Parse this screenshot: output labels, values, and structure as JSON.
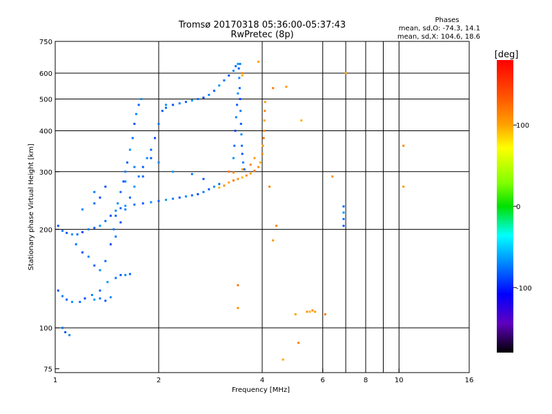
{
  "header": {
    "title_line1": "Tromsø 20170318 05:36:00-05:37:43",
    "title_line2": "RwPretec (8p)",
    "phases_label": "Phases",
    "phases_o": "mean, sd,O: -74.3, 14.1",
    "phases_x": "mean, sd,X: 104.6, 18.6"
  },
  "chart_data": {
    "type": "scatter",
    "xlabel": "Frequency [MHz]",
    "ylabel": "Stationary phase Virtual Height [km]",
    "xscale": "log",
    "yscale": "log",
    "xlim": [
      1,
      16
    ],
    "ylim": [
      73,
      750
    ],
    "x_ticks": [
      1,
      2,
      4,
      6,
      8,
      10,
      16
    ],
    "x_tick_labels": [
      "1",
      "2",
      "4",
      "6",
      "8",
      "10",
      "16"
    ],
    "x_grid": [
      2,
      4,
      6,
      7,
      8,
      9,
      10
    ],
    "y_ticks": [
      75,
      100,
      200,
      300,
      400,
      500,
      600,
      750
    ],
    "y_tick_labels": [
      "75",
      "100",
      "200",
      "300",
      "400",
      "500",
      "600",
      "750"
    ],
    "y_grid": [
      100,
      200,
      300,
      400,
      500,
      600
    ],
    "grid": true,
    "colorbar": {
      "label": "[deg]",
      "range": [
        -180,
        180
      ],
      "ticks": [
        100,
        0,
        -100
      ],
      "tick_labels": [
        "100",
        "0",
        "-100"
      ]
    },
    "series": [
      {
        "mode": "O",
        "phase_mean": -74.3,
        "points": [
          [
            1.02,
            205
          ],
          [
            1.05,
            198
          ],
          [
            1.08,
            195
          ],
          [
            1.12,
            193
          ],
          [
            1.16,
            193
          ],
          [
            1.2,
            196
          ],
          [
            1.25,
            200
          ],
          [
            1.3,
            202
          ],
          [
            1.35,
            205
          ],
          [
            1.4,
            212
          ],
          [
            1.45,
            220
          ],
          [
            1.5,
            228
          ],
          [
            1.55,
            232
          ],
          [
            1.6,
            236
          ],
          [
            1.7,
            238
          ],
          [
            1.8,
            240
          ],
          [
            1.9,
            242
          ],
          [
            2.0,
            244
          ],
          [
            2.1,
            246
          ],
          [
            2.2,
            248
          ],
          [
            2.3,
            250
          ],
          [
            2.4,
            252
          ],
          [
            2.5,
            254
          ],
          [
            2.6,
            256
          ],
          [
            2.7,
            260
          ],
          [
            2.8,
            265
          ],
          [
            2.9,
            270
          ],
          [
            3.0,
            275
          ],
          [
            1.02,
            130
          ],
          [
            1.05,
            125
          ],
          [
            1.08,
            122
          ],
          [
            1.12,
            120
          ],
          [
            1.18,
            120
          ],
          [
            1.22,
            123
          ],
          [
            1.28,
            126
          ],
          [
            1.35,
            130
          ],
          [
            1.42,
            138
          ],
          [
            1.5,
            142
          ],
          [
            1.55,
            145
          ],
          [
            1.6,
            145
          ],
          [
            1.65,
            146
          ],
          [
            1.3,
            122
          ],
          [
            1.35,
            123
          ],
          [
            1.4,
            121
          ],
          [
            1.45,
            124
          ],
          [
            1.4,
            160
          ],
          [
            1.45,
            180
          ],
          [
            1.48,
            200
          ],
          [
            1.5,
            220
          ],
          [
            1.52,
            240
          ],
          [
            1.55,
            260
          ],
          [
            1.58,
            280
          ],
          [
            1.6,
            300
          ],
          [
            1.62,
            320
          ],
          [
            1.65,
            350
          ],
          [
            1.68,
            380
          ],
          [
            1.7,
            420
          ],
          [
            1.72,
            450
          ],
          [
            1.75,
            480
          ],
          [
            1.78,
            500
          ],
          [
            1.5,
            190
          ],
          [
            1.55,
            210
          ],
          [
            1.6,
            230
          ],
          [
            1.65,
            250
          ],
          [
            1.7,
            270
          ],
          [
            1.75,
            290
          ],
          [
            1.8,
            310
          ],
          [
            1.85,
            330
          ],
          [
            1.9,
            350
          ],
          [
            1.95,
            380
          ],
          [
            2.0,
            420
          ],
          [
            2.05,
            460
          ],
          [
            2.1,
            480
          ],
          [
            2.1,
            470
          ],
          [
            2.2,
            480
          ],
          [
            2.3,
            485
          ],
          [
            2.4,
            490
          ],
          [
            2.5,
            495
          ],
          [
            2.6,
            500
          ],
          [
            2.7,
            505
          ],
          [
            2.8,
            515
          ],
          [
            2.9,
            530
          ],
          [
            3.0,
            550
          ],
          [
            3.1,
            570
          ],
          [
            3.2,
            590
          ],
          [
            3.3,
            610
          ],
          [
            3.35,
            630
          ],
          [
            3.4,
            640
          ],
          [
            3.45,
            640
          ],
          [
            3.42,
            620
          ],
          [
            3.43,
            580
          ],
          [
            3.44,
            540
          ],
          [
            3.45,
            500
          ],
          [
            3.46,
            460
          ],
          [
            3.47,
            420
          ],
          [
            3.48,
            390
          ],
          [
            3.49,
            360
          ],
          [
            3.5,
            340
          ],
          [
            3.52,
            320
          ],
          [
            3.55,
            305
          ],
          [
            3.3,
            330
          ],
          [
            3.32,
            360
          ],
          [
            3.34,
            400
          ],
          [
            3.36,
            440
          ],
          [
            3.38,
            480
          ],
          [
            3.4,
            520
          ],
          [
            1.3,
            260
          ],
          [
            1.4,
            270
          ],
          [
            1.6,
            280
          ],
          [
            1.8,
            290
          ],
          [
            2.2,
            300
          ],
          [
            2.5,
            295
          ],
          [
            2.7,
            285
          ],
          [
            1.2,
            230
          ],
          [
            1.3,
            240
          ],
          [
            1.35,
            250
          ],
          [
            1.7,
            310
          ],
          [
            1.9,
            330
          ],
          [
            2.0,
            320
          ],
          [
            1.15,
            180
          ],
          [
            1.2,
            170
          ],
          [
            1.25,
            165
          ],
          [
            1.3,
            155
          ],
          [
            1.35,
            150
          ],
          [
            1.05,
            100
          ],
          [
            1.07,
            97
          ],
          [
            1.1,
            95
          ],
          [
            6.9,
            235
          ],
          [
            6.9,
            225
          ],
          [
            6.9,
            215
          ],
          [
            6.9,
            205
          ]
        ]
      },
      {
        "mode": "X",
        "phase_mean": 104.6,
        "points": [
          [
            3.0,
            268
          ],
          [
            3.1,
            272
          ],
          [
            3.2,
            278
          ],
          [
            3.3,
            282
          ],
          [
            3.4,
            285
          ],
          [
            3.5,
            288
          ],
          [
            3.6,
            292
          ],
          [
            3.7,
            296
          ],
          [
            3.8,
            302
          ],
          [
            3.9,
            310
          ],
          [
            3.95,
            320
          ],
          [
            4.0,
            340
          ],
          [
            4.02,
            360
          ],
          [
            4.04,
            380
          ],
          [
            4.05,
            400
          ],
          [
            4.06,
            430
          ],
          [
            4.07,
            460
          ],
          [
            4.08,
            490
          ],
          [
            3.2,
            300
          ],
          [
            3.3,
            298
          ],
          [
            3.5,
            305
          ],
          [
            3.7,
            315
          ],
          [
            3.8,
            330
          ],
          [
            3.5,
            590
          ],
          [
            3.5,
            600
          ],
          [
            3.9,
            650
          ],
          [
            4.3,
            540
          ],
          [
            4.7,
            545
          ],
          [
            5.2,
            430
          ],
          [
            4.2,
            270
          ],
          [
            5.0,
            110
          ],
          [
            5.1,
            90
          ],
          [
            5.4,
            112
          ],
          [
            5.5,
            112
          ],
          [
            5.6,
            113
          ],
          [
            5.7,
            112
          ],
          [
            6.1,
            110
          ],
          [
            6.4,
            290
          ],
          [
            7.0,
            600
          ],
          [
            10.3,
            360
          ],
          [
            10.3,
            270
          ],
          [
            3.4,
            135
          ],
          [
            3.4,
            115
          ],
          [
            4.6,
            80
          ],
          [
            4.4,
            205
          ],
          [
            4.3,
            185
          ]
        ]
      }
    ]
  }
}
